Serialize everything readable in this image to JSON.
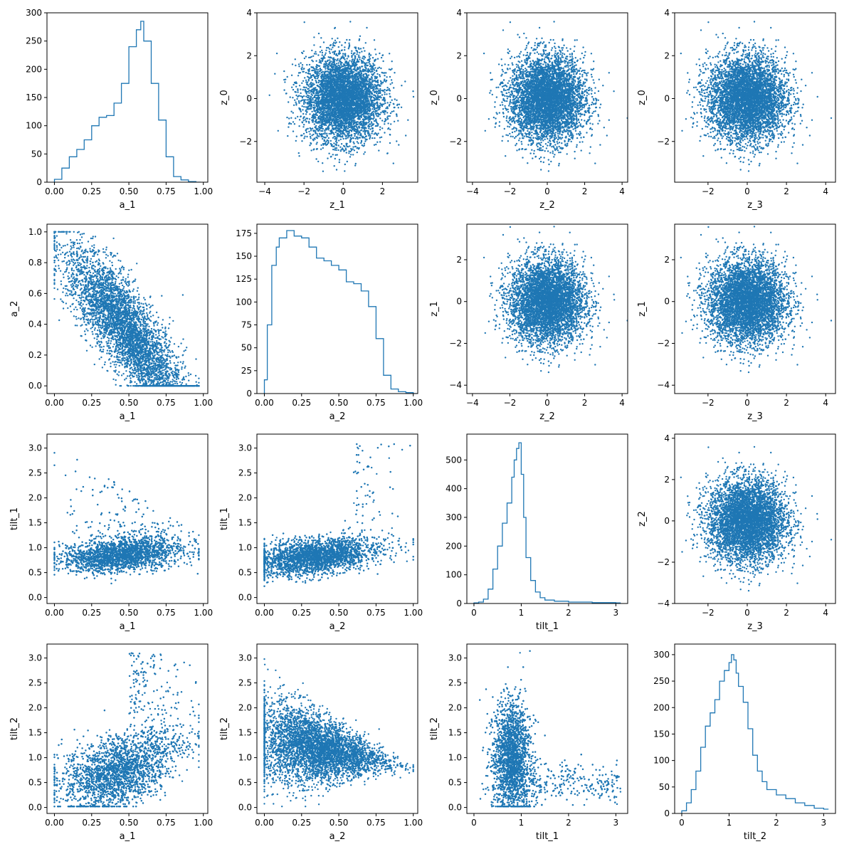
{
  "figure": {
    "rows": 4,
    "cols": 4,
    "point_color": "#1f77b4",
    "line_color": "#1f77b4",
    "background": "#ffffff"
  },
  "chart_data": [
    {
      "type": "histogram",
      "row": 0,
      "col": 0,
      "xlabel": "a_1",
      "ylabel": "",
      "xlim": [
        -0.05,
        1.03
      ],
      "ylim": [
        0,
        300
      ],
      "xticks": [
        0.0,
        0.25,
        0.5,
        0.75,
        1.0
      ],
      "xtick_labels": [
        "0.00",
        "0.25",
        "0.50",
        "0.75",
        "1.00"
      ],
      "yticks": [
        0,
        50,
        100,
        150,
        200,
        250,
        300
      ],
      "ytick_labels": [
        "0",
        "50",
        "100",
        "150",
        "200",
        "250",
        "300"
      ],
      "bins_x": [
        0.0,
        0.05,
        0.1,
        0.15,
        0.2,
        0.25,
        0.3,
        0.35,
        0.4,
        0.45,
        0.5,
        0.55,
        0.58,
        0.6,
        0.65,
        0.7,
        0.75,
        0.8,
        0.85,
        0.9,
        0.95
      ],
      "bins_y": [
        5,
        25,
        45,
        58,
        75,
        100,
        115,
        118,
        140,
        175,
        240,
        270,
        285,
        250,
        175,
        110,
        45,
        10,
        4,
        1,
        0
      ]
    },
    {
      "type": "scatter",
      "row": 0,
      "col": 1,
      "xlabel": "z_1",
      "ylabel": "z_0",
      "xlim": [
        -4.4,
        3.8
      ],
      "ylim": [
        -3.9,
        4.0
      ],
      "xticks": [
        -4,
        -2,
        0,
        2
      ],
      "xtick_labels": [
        "−4",
        "−2",
        "0",
        "2"
      ],
      "yticks": [
        -2,
        0,
        2,
        4
      ],
      "ytick_labels": [
        "−2",
        "0",
        "2",
        "4"
      ],
      "distribution": {
        "kind": "gaussian",
        "mean_x": 0,
        "mean_y": 0,
        "std_x": 1,
        "std_y": 1,
        "n": 5000
      }
    },
    {
      "type": "scatter",
      "row": 0,
      "col": 2,
      "xlabel": "z_2",
      "ylabel": "z_0",
      "xlim": [
        -4.3,
        4.3
      ],
      "ylim": [
        -3.9,
        4.0
      ],
      "xticks": [
        -4,
        -2,
        0,
        2,
        4
      ],
      "xtick_labels": [
        "−4",
        "−2",
        "0",
        "2",
        "4"
      ],
      "yticks": [
        -2,
        0,
        2,
        4
      ],
      "ytick_labels": [
        "−2",
        "0",
        "2",
        "4"
      ],
      "distribution": {
        "kind": "gaussian",
        "mean_x": 0,
        "mean_y": 0,
        "std_x": 1,
        "std_y": 1,
        "n": 5000
      }
    },
    {
      "type": "scatter",
      "row": 0,
      "col": 3,
      "xlabel": "z_3",
      "ylabel": "z_0",
      "xlim": [
        -3.7,
        4.5
      ],
      "ylim": [
        -3.9,
        4.0
      ],
      "xticks": [
        -2,
        0,
        2,
        4
      ],
      "xtick_labels": [
        "−2",
        "0",
        "2",
        "4"
      ],
      "yticks": [
        -2,
        0,
        2,
        4
      ],
      "ytick_labels": [
        "−2",
        "0",
        "2",
        "4"
      ],
      "distribution": {
        "kind": "gaussian",
        "mean_x": 0,
        "mean_y": 0,
        "std_x": 1,
        "std_y": 1,
        "n": 5000
      }
    },
    {
      "type": "scatter",
      "row": 1,
      "col": 0,
      "xlabel": "a_1",
      "ylabel": "a_2",
      "xlim": [
        -0.05,
        1.03
      ],
      "ylim": [
        -0.05,
        1.05
      ],
      "xticks": [
        0.0,
        0.25,
        0.5,
        0.75,
        1.0
      ],
      "xtick_labels": [
        "0.00",
        "0.25",
        "0.50",
        "0.75",
        "1.00"
      ],
      "yticks": [
        0.0,
        0.2,
        0.4,
        0.6,
        0.8,
        1.0
      ],
      "ytick_labels": [
        "0.0",
        "0.2",
        "0.4",
        "0.6",
        "0.8",
        "1.0"
      ],
      "distribution": {
        "kind": "a1_a2",
        "n": 4500
      }
    },
    {
      "type": "histogram",
      "row": 1,
      "col": 1,
      "xlabel": "a_2",
      "ylabel": "",
      "xlim": [
        -0.05,
        1.03
      ],
      "ylim": [
        0,
        185
      ],
      "xticks": [
        0.0,
        0.25,
        0.5,
        0.75,
        1.0
      ],
      "xtick_labels": [
        "0.00",
        "0.25",
        "0.50",
        "0.75",
        "1.00"
      ],
      "yticks": [
        0,
        25,
        50,
        75,
        100,
        125,
        150,
        175
      ],
      "ytick_labels": [
        "0",
        "25",
        "50",
        "75",
        "100",
        "125",
        "150",
        "175"
      ],
      "bins_x": [
        0.0,
        0.02,
        0.05,
        0.08,
        0.1,
        0.15,
        0.2,
        0.25,
        0.3,
        0.35,
        0.4,
        0.45,
        0.5,
        0.55,
        0.6,
        0.65,
        0.7,
        0.75,
        0.8,
        0.85,
        0.9,
        0.95,
        1.0
      ],
      "bins_y": [
        15,
        75,
        140,
        160,
        170,
        178,
        172,
        170,
        160,
        148,
        145,
        140,
        135,
        122,
        120,
        112,
        95,
        60,
        20,
        5,
        2,
        1,
        0
      ]
    },
    {
      "type": "scatter",
      "row": 1,
      "col": 2,
      "xlabel": "z_2",
      "ylabel": "z_1",
      "xlim": [
        -4.3,
        4.3
      ],
      "ylim": [
        -4.4,
        3.7
      ],
      "xticks": [
        -4,
        -2,
        0,
        2,
        4
      ],
      "xtick_labels": [
        "−4",
        "−2",
        "0",
        "2",
        "4"
      ],
      "yticks": [
        -4,
        -2,
        0,
        2
      ],
      "ytick_labels": [
        "−4",
        "−2",
        "0",
        "2"
      ],
      "distribution": {
        "kind": "gaussian",
        "mean_x": 0,
        "mean_y": 0,
        "std_x": 1,
        "std_y": 1,
        "n": 5000
      }
    },
    {
      "type": "scatter",
      "row": 1,
      "col": 3,
      "xlabel": "z_3",
      "ylabel": "z_1",
      "xlim": [
        -3.7,
        4.5
      ],
      "ylim": [
        -4.4,
        3.7
      ],
      "xticks": [
        -2,
        0,
        2,
        4
      ],
      "xtick_labels": [
        "−2",
        "0",
        "2",
        "4"
      ],
      "yticks": [
        -4,
        -2,
        0,
        2
      ],
      "ytick_labels": [
        "−4",
        "−2",
        "0",
        "2"
      ],
      "distribution": {
        "kind": "gaussian",
        "mean_x": 0,
        "mean_y": 0,
        "std_x": 1,
        "std_y": 1,
        "n": 5000
      }
    },
    {
      "type": "scatter",
      "row": 2,
      "col": 0,
      "xlabel": "a_1",
      "ylabel": "tilt_1",
      "xlim": [
        -0.05,
        1.03
      ],
      "ylim": [
        -0.12,
        3.28
      ],
      "xticks": [
        0.0,
        0.25,
        0.5,
        0.75,
        1.0
      ],
      "xtick_labels": [
        "0.00",
        "0.25",
        "0.50",
        "0.75",
        "1.00"
      ],
      "yticks": [
        0.0,
        0.5,
        1.0,
        1.5,
        2.0,
        2.5,
        3.0
      ],
      "ytick_labels": [
        "0.0",
        "0.5",
        "1.0",
        "1.5",
        "2.0",
        "2.5",
        "3.0"
      ],
      "distribution": {
        "kind": "a1_tilt1",
        "n": 4500
      }
    },
    {
      "type": "scatter",
      "row": 2,
      "col": 1,
      "xlabel": "a_2",
      "ylabel": "tilt_1",
      "xlim": [
        -0.05,
        1.03
      ],
      "ylim": [
        -0.12,
        3.28
      ],
      "xticks": [
        0.0,
        0.25,
        0.5,
        0.75,
        1.0
      ],
      "xtick_labels": [
        "0.00",
        "0.25",
        "0.50",
        "0.75",
        "1.00"
      ],
      "yticks": [
        0.0,
        0.5,
        1.0,
        1.5,
        2.0,
        2.5,
        3.0
      ],
      "ytick_labels": [
        "0.0",
        "0.5",
        "1.0",
        "1.5",
        "2.0",
        "2.5",
        "3.0"
      ],
      "distribution": {
        "kind": "a2_tilt1",
        "n": 4500
      }
    },
    {
      "type": "histogram",
      "row": 2,
      "col": 2,
      "xlabel": "tilt_1",
      "ylabel": "",
      "xlim": [
        -0.15,
        3.25
      ],
      "ylim": [
        0,
        590
      ],
      "xticks": [
        0,
        1,
        2,
        3
      ],
      "xtick_labels": [
        "0",
        "1",
        "2",
        "3"
      ],
      "yticks": [
        0,
        100,
        200,
        300,
        400,
        500
      ],
      "ytick_labels": [
        "0",
        "100",
        "200",
        "300",
        "400",
        "500"
      ],
      "bins_x": [
        0.0,
        0.1,
        0.2,
        0.3,
        0.4,
        0.5,
        0.6,
        0.7,
        0.8,
        0.85,
        0.9,
        0.95,
        1.0,
        1.05,
        1.1,
        1.2,
        1.3,
        1.4,
        1.5,
        1.7,
        2.0,
        2.5,
        3.0
      ],
      "bins_y": [
        2,
        5,
        15,
        50,
        120,
        200,
        280,
        350,
        440,
        500,
        540,
        560,
        450,
        300,
        160,
        80,
        40,
        20,
        12,
        8,
        5,
        3,
        2
      ]
    },
    {
      "type": "scatter",
      "row": 2,
      "col": 3,
      "xlabel": "z_3",
      "ylabel": "z_2",
      "xlim": [
        -3.7,
        4.5
      ],
      "ylim": [
        -4.0,
        4.2
      ],
      "xticks": [
        -2,
        0,
        2,
        4
      ],
      "xtick_labels": [
        "−2",
        "0",
        "2",
        "4"
      ],
      "yticks": [
        -4,
        -2,
        0,
        2,
        4
      ],
      "ytick_labels": [
        "−4",
        "−2",
        "0",
        "2",
        "4"
      ],
      "distribution": {
        "kind": "gaussian",
        "mean_x": 0,
        "mean_y": 0,
        "std_x": 1,
        "std_y": 1,
        "n": 5000
      }
    },
    {
      "type": "scatter",
      "row": 3,
      "col": 0,
      "xlabel": "a_1",
      "ylabel": "tilt_2",
      "xlim": [
        -0.05,
        1.03
      ],
      "ylim": [
        -0.12,
        3.28
      ],
      "xticks": [
        0.0,
        0.25,
        0.5,
        0.75,
        1.0
      ],
      "xtick_labels": [
        "0.00",
        "0.25",
        "0.50",
        "0.75",
        "1.00"
      ],
      "yticks": [
        0.0,
        0.5,
        1.0,
        1.5,
        2.0,
        2.5,
        3.0
      ],
      "ytick_labels": [
        "0.0",
        "0.5",
        "1.0",
        "1.5",
        "2.0",
        "2.5",
        "3.0"
      ],
      "distribution": {
        "kind": "a1_tilt2",
        "n": 4500
      }
    },
    {
      "type": "scatter",
      "row": 3,
      "col": 1,
      "xlabel": "a_2",
      "ylabel": "tilt_2",
      "xlim": [
        -0.05,
        1.03
      ],
      "ylim": [
        -0.12,
        3.28
      ],
      "xticks": [
        0.0,
        0.25,
        0.5,
        0.75,
        1.0
      ],
      "xtick_labels": [
        "0.00",
        "0.25",
        "0.50",
        "0.75",
        "1.00"
      ],
      "yticks": [
        0.0,
        0.5,
        1.0,
        1.5,
        2.0,
        2.5,
        3.0
      ],
      "ytick_labels": [
        "0.0",
        "0.5",
        "1.0",
        "1.5",
        "2.0",
        "2.5",
        "3.0"
      ],
      "distribution": {
        "kind": "a2_tilt2",
        "n": 4500
      }
    },
    {
      "type": "scatter",
      "row": 3,
      "col": 2,
      "xlabel": "tilt_1",
      "ylabel": "tilt_2",
      "xlim": [
        -0.15,
        3.25
      ],
      "ylim": [
        -0.12,
        3.28
      ],
      "xticks": [
        0,
        1,
        2,
        3
      ],
      "xtick_labels": [
        "0",
        "1",
        "2",
        "3"
      ],
      "yticks": [
        0.0,
        0.5,
        1.0,
        1.5,
        2.0,
        2.5,
        3.0
      ],
      "ytick_labels": [
        "0.0",
        "0.5",
        "1.0",
        "1.5",
        "2.0",
        "2.5",
        "3.0"
      ],
      "distribution": {
        "kind": "tilt1_tilt2",
        "n": 4500
      }
    },
    {
      "type": "histogram",
      "row": 3,
      "col": 3,
      "xlabel": "tilt_2",
      "ylabel": "",
      "xlim": [
        -0.15,
        3.25
      ],
      "ylim": [
        0,
        320
      ],
      "xticks": [
        0,
        1,
        2,
        3
      ],
      "xtick_labels": [
        "0",
        "1",
        "2",
        "3"
      ],
      "yticks": [
        0,
        50,
        100,
        150,
        200,
        250,
        300
      ],
      "ytick_labels": [
        "0",
        "50",
        "100",
        "150",
        "200",
        "250",
        "300"
      ],
      "bins_x": [
        0.0,
        0.1,
        0.2,
        0.3,
        0.4,
        0.5,
        0.6,
        0.7,
        0.8,
        0.9,
        1.0,
        1.05,
        1.1,
        1.15,
        1.2,
        1.3,
        1.4,
        1.5,
        1.6,
        1.7,
        1.8,
        2.0,
        2.2,
        2.4,
        2.6,
        2.8,
        3.0
      ],
      "bins_y": [
        5,
        20,
        45,
        80,
        125,
        165,
        190,
        215,
        250,
        270,
        285,
        300,
        290,
        265,
        240,
        210,
        160,
        110,
        80,
        60,
        45,
        35,
        28,
        20,
        15,
        10,
        8
      ]
    }
  ]
}
